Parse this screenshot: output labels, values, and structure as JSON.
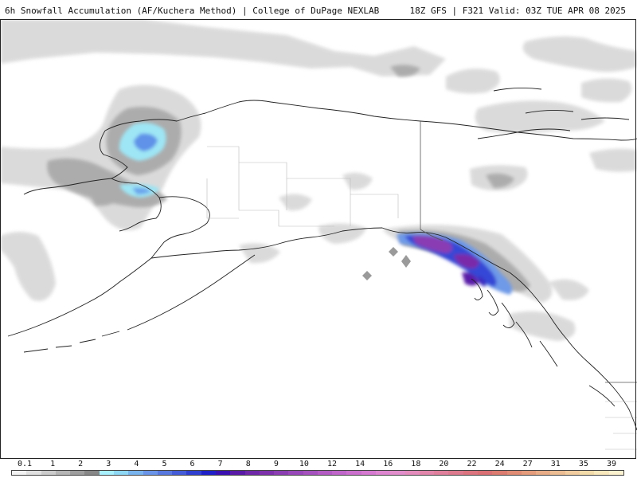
{
  "header": {
    "title": "6h Snowfall Accumulation (AF/Kuchera Method) | College of DuPage NEXLAB",
    "run_info": "18Z GFS | F321 Valid: 03Z TUE APR 08 2025"
  },
  "map": {
    "region": "Alaska / Yukon / British Columbia",
    "features": [
      "snowfall-shading",
      "coastlines",
      "political-borders"
    ]
  },
  "legend": {
    "tick_labels": [
      "0.1",
      "1",
      "2",
      "3",
      "4",
      "5",
      "6",
      "7",
      "8",
      "9",
      "10",
      "12",
      "14",
      "16",
      "18",
      "20",
      "22",
      "24",
      "27",
      "31",
      "35",
      "39"
    ],
    "colors": [
      "#f2f2f2",
      "#e0e0e0",
      "#cccccc",
      "#b5b5b5",
      "#9e9e9e",
      "#878787",
      "#a9f0ff",
      "#8ed8f5",
      "#7ab4ef",
      "#6a94e8",
      "#5878e0",
      "#445cd8",
      "#2f3fd0",
      "#2020c8",
      "#3a10b0",
      "#5a1aa8",
      "#6e28a8",
      "#7d32ac",
      "#8a3eb2",
      "#9848b8",
      "#a652be",
      "#b45cc4",
      "#c066ca",
      "#cc70ce",
      "#d57ad0",
      "#de86d0",
      "#e28ecc",
      "#e48cbc",
      "#e286ac",
      "#e0809c",
      "#de7a8e",
      "#dc7480",
      "#db7074",
      "#dc7c70",
      "#e08c74",
      "#e49c7c",
      "#e8ac86",
      "#ecbc92",
      "#f0cc9e",
      "#f4dcaa",
      "#f8e8bc",
      "#fcf2d0"
    ]
  }
}
